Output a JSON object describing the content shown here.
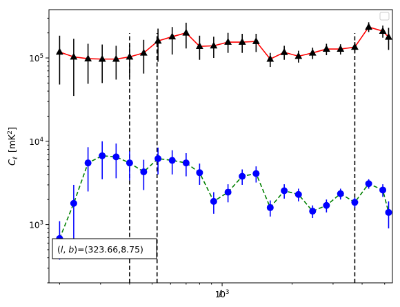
{
  "chart_data": {
    "type": "scatter",
    "title": "",
    "xlabel": "ℓ",
    "ylabel": "C",
    "ylabel_subscript": "ℓ",
    "ylabel_units": "[mK",
    "ylabel_units_sup": "2",
    "ylabel_units_close": "]",
    "xscale": "log",
    "yscale": "log",
    "xlim": [
      180,
      5400
    ],
    "ylim": [
      200,
      380000
    ],
    "grid": false,
    "legend": "top-right (empty)",
    "x_tick_labels": [
      {
        "value": 1000,
        "base": "10",
        "exp": "3"
      }
    ],
    "y_tick_labels": [
      {
        "value": 1000,
        "base": "10",
        "exp": "3"
      },
      {
        "value": 10000,
        "base": "10",
        "exp": "4"
      },
      {
        "value": 100000,
        "base": "10",
        "exp": "5"
      }
    ],
    "annotation": "(l, b)=(323.66,8.75)",
    "annotation_parts": {
      "open": "(",
      "l": "l",
      "comma": ", ",
      "b": "b",
      "rest": ")=(323.66,8.75)"
    },
    "vlines": [
      400,
      525,
      3720
    ],
    "series": [
      {
        "color": "#ff0000",
        "marker": "triangle",
        "marker_color": "#000000",
        "errbar_color": "#000000",
        "linestyle": "solid",
        "points": [
          {
            "x": 200,
            "y": 118000,
            "lo": 48000,
            "hi": 185000
          },
          {
            "x": 230,
            "y": 103000,
            "lo": 35000,
            "hi": 170000
          },
          {
            "x": 265,
            "y": 98000,
            "lo": 49000,
            "hi": 148000
          },
          {
            "x": 305,
            "y": 97000,
            "lo": 50000,
            "hi": 145000
          },
          {
            "x": 350,
            "y": 97000,
            "lo": 55000,
            "hi": 140000
          },
          {
            "x": 400,
            "y": 103000,
            "lo": 60000,
            "hi": 145000
          },
          {
            "x": 460,
            "y": 115000,
            "lo": 65000,
            "hi": 165000
          },
          {
            "x": 530,
            "y": 160000,
            "lo": 90000,
            "hi": 225000
          },
          {
            "x": 610,
            "y": 180000,
            "lo": 110000,
            "hi": 235000
          },
          {
            "x": 700,
            "y": 200000,
            "lo": 130000,
            "hi": 265000
          },
          {
            "x": 800,
            "y": 138000,
            "lo": 95000,
            "hi": 185000
          },
          {
            "x": 920,
            "y": 140000,
            "lo": 100000,
            "hi": 180000
          },
          {
            "x": 1060,
            "y": 155000,
            "lo": 115000,
            "hi": 200000
          },
          {
            "x": 1220,
            "y": 155000,
            "lo": 115000,
            "hi": 195000
          },
          {
            "x": 1400,
            "y": 158000,
            "lo": 118000,
            "hi": 195000
          },
          {
            "x": 1610,
            "y": 97000,
            "lo": 78000,
            "hi": 115000
          },
          {
            "x": 1850,
            "y": 117000,
            "lo": 95000,
            "hi": 140000
          },
          {
            "x": 2130,
            "y": 105000,
            "lo": 88000,
            "hi": 122000
          },
          {
            "x": 2450,
            "y": 115000,
            "lo": 97000,
            "hi": 133000
          },
          {
            "x": 2810,
            "y": 128000,
            "lo": 108000,
            "hi": 148000
          },
          {
            "x": 3230,
            "y": 128000,
            "lo": 110000,
            "hi": 146000
          },
          {
            "x": 3720,
            "y": 135000,
            "lo": 115000,
            "hi": 155000
          },
          {
            "x": 4270,
            "y": 235000,
            "lo": 205000,
            "hi": 268000
          },
          {
            "x": 4910,
            "y": 210000,
            "lo": 175000,
            "hi": 245000
          },
          {
            "x": 5200,
            "y": 178000,
            "lo": 125000,
            "hi": 230000
          }
        ]
      },
      {
        "color": "#008000",
        "marker": "circle",
        "marker_color": "#0000ff",
        "errbar_color": "#0000ff",
        "linestyle": "dashed",
        "points": [
          {
            "x": 200,
            "y": 680,
            "lo": 380,
            "hi": 1100
          },
          {
            "x": 230,
            "y": 1800,
            "lo": 600,
            "hi": 3000
          },
          {
            "x": 265,
            "y": 5500,
            "lo": 2500,
            "hi": 8500
          },
          {
            "x": 305,
            "y": 6700,
            "lo": 3500,
            "hi": 10000
          },
          {
            "x": 350,
            "y": 6500,
            "lo": 3600,
            "hi": 9400
          },
          {
            "x": 400,
            "y": 5500,
            "lo": 3400,
            "hi": 7600
          },
          {
            "x": 460,
            "y": 4300,
            "lo": 2600,
            "hi": 6000
          },
          {
            "x": 530,
            "y": 6200,
            "lo": 4000,
            "hi": 8400
          },
          {
            "x": 610,
            "y": 5900,
            "lo": 4000,
            "hi": 7800
          },
          {
            "x": 700,
            "y": 5500,
            "lo": 3800,
            "hi": 7200
          },
          {
            "x": 800,
            "y": 4200,
            "lo": 3000,
            "hi": 5400
          },
          {
            "x": 920,
            "y": 1900,
            "lo": 1350,
            "hi": 2450
          },
          {
            "x": 1060,
            "y": 2450,
            "lo": 1850,
            "hi": 3050
          },
          {
            "x": 1220,
            "y": 3800,
            "lo": 3000,
            "hi": 4600
          },
          {
            "x": 1400,
            "y": 4100,
            "lo": 3200,
            "hi": 5000
          },
          {
            "x": 1610,
            "y": 1600,
            "lo": 1250,
            "hi": 1950
          },
          {
            "x": 1850,
            "y": 2550,
            "lo": 2050,
            "hi": 3050
          },
          {
            "x": 2130,
            "y": 2300,
            "lo": 1900,
            "hi": 2700
          },
          {
            "x": 2450,
            "y": 1450,
            "lo": 1200,
            "hi": 1700
          },
          {
            "x": 2810,
            "y": 1700,
            "lo": 1400,
            "hi": 2000
          },
          {
            "x": 3230,
            "y": 2350,
            "lo": 2000,
            "hi": 2700
          },
          {
            "x": 3720,
            "y": 1850,
            "lo": 1600,
            "hi": 2100
          },
          {
            "x": 4270,
            "y": 3100,
            "lo": 2700,
            "hi": 3500
          },
          {
            "x": 4910,
            "y": 2600,
            "lo": 2150,
            "hi": 3050
          },
          {
            "x": 5200,
            "y": 1400,
            "lo": 900,
            "hi": 1900
          }
        ]
      }
    ]
  }
}
